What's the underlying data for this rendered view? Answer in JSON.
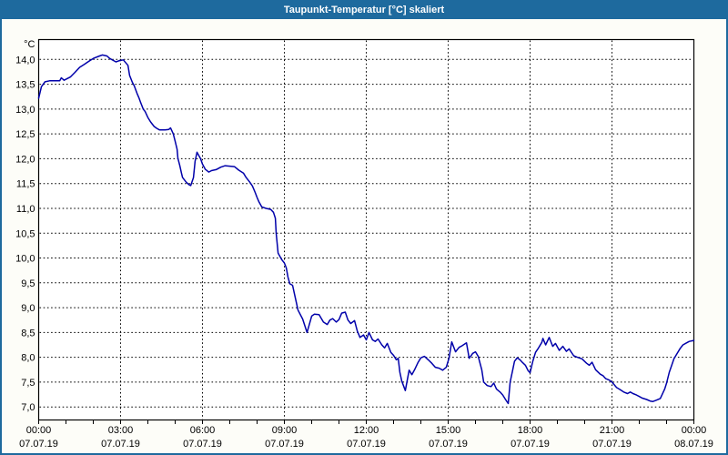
{
  "window": {
    "title": "Taupunkt-Temperatur [°C] skaliert"
  },
  "colors": {
    "titlebar_bg": "#1E6A9E",
    "window_border": "#1E6A9E",
    "plot_bg": "#FFFFFF",
    "grid": "#000000",
    "frame": "#000000",
    "series": "#0000AA"
  },
  "chart_data": {
    "type": "line",
    "title": "Taupunkt-Temperatur [°C] skaliert",
    "xlabel": "",
    "ylabel": "",
    "y_unit_label": "°C",
    "xlim_hours": [
      0,
      24
    ],
    "ylim": [
      7.0,
      14.0
    ],
    "y_tick_step": 0.5,
    "grid": "dotted",
    "legend_position": "none",
    "y_ticks": [
      {
        "value": 14.0,
        "label": "14,0"
      },
      {
        "value": 13.5,
        "label": "13,5"
      },
      {
        "value": 13.0,
        "label": "13,0"
      },
      {
        "value": 12.5,
        "label": "12,5"
      },
      {
        "value": 12.0,
        "label": "12,0"
      },
      {
        "value": 11.5,
        "label": "11,5"
      },
      {
        "value": 11.0,
        "label": "11,0"
      },
      {
        "value": 10.5,
        "label": "10,5"
      },
      {
        "value": 10.0,
        "label": "10,0"
      },
      {
        "value": 9.5,
        "label": "9,5"
      },
      {
        "value": 9.0,
        "label": "9,0"
      },
      {
        "value": 8.5,
        "label": "8,5"
      },
      {
        "value": 8.0,
        "label": "8,0"
      },
      {
        "value": 7.5,
        "label": "7,5"
      },
      {
        "value": 7.0,
        "label": "7,0"
      }
    ],
    "x_ticks": [
      {
        "hour": 0,
        "time": "00:00",
        "date": "07.07.19"
      },
      {
        "hour": 3,
        "time": "03:00",
        "date": "07.07.19"
      },
      {
        "hour": 6,
        "time": "06:00",
        "date": "07.07.19"
      },
      {
        "hour": 9,
        "time": "09:00",
        "date": "07.07.19"
      },
      {
        "hour": 12,
        "time": "12:00",
        "date": "07.07.19"
      },
      {
        "hour": 15,
        "time": "15:00",
        "date": "07.07.19"
      },
      {
        "hour": 18,
        "time": "18:00",
        "date": "07.07.19"
      },
      {
        "hour": 21,
        "time": "21:00",
        "date": "07.07.19"
      },
      {
        "hour": 24,
        "time": "00:00",
        "date": "08.07.19"
      }
    ],
    "x_minor_tick_hours": 1,
    "series": [
      {
        "name": "Taupunkt-Temperatur",
        "color": "#0000AA",
        "points": [
          [
            0,
            13.22
          ],
          [
            0.1,
            13.45
          ],
          [
            0.23,
            13.55
          ],
          [
            0.4,
            13.57
          ],
          [
            0.6,
            13.57
          ],
          [
            0.77,
            13.57
          ],
          [
            0.83,
            13.63
          ],
          [
            0.93,
            13.58
          ],
          [
            1.17,
            13.65
          ],
          [
            1.33,
            13.74
          ],
          [
            1.5,
            13.84
          ],
          [
            1.67,
            13.9
          ],
          [
            1.83,
            13.96
          ],
          [
            2,
            14.02
          ],
          [
            2.23,
            14.07
          ],
          [
            2.33,
            14.09
          ],
          [
            2.5,
            14.07
          ],
          [
            2.6,
            14.02
          ],
          [
            2.73,
            13.98
          ],
          [
            2.83,
            13.95
          ],
          [
            2.93,
            13.97
          ],
          [
            3,
            13.98
          ],
          [
            3.1,
            13.99
          ],
          [
            3.27,
            13.88
          ],
          [
            3.33,
            13.68
          ],
          [
            3.43,
            13.54
          ],
          [
            3.5,
            13.47
          ],
          [
            3.6,
            13.32
          ],
          [
            3.67,
            13.23
          ],
          [
            3.73,
            13.14
          ],
          [
            3.83,
            13.0
          ],
          [
            3.9,
            12.95
          ],
          [
            4,
            12.83
          ],
          [
            4.1,
            12.74
          ],
          [
            4.23,
            12.65
          ],
          [
            4.33,
            12.61
          ],
          [
            4.43,
            12.58
          ],
          [
            4.63,
            12.58
          ],
          [
            4.77,
            12.59
          ],
          [
            4.83,
            12.62
          ],
          [
            4.93,
            12.5
          ],
          [
            5,
            12.35
          ],
          [
            5.07,
            12.19
          ],
          [
            5.1,
            12.01
          ],
          [
            5.17,
            11.86
          ],
          [
            5.23,
            11.71
          ],
          [
            5.27,
            11.62
          ],
          [
            5.4,
            11.53
          ],
          [
            5.5,
            11.48
          ],
          [
            5.57,
            11.46
          ],
          [
            5.67,
            11.62
          ],
          [
            5.73,
            11.95
          ],
          [
            5.8,
            12.13
          ],
          [
            5.93,
            12.0
          ],
          [
            6,
            11.89
          ],
          [
            6.1,
            11.79
          ],
          [
            6.23,
            11.73
          ],
          [
            6.33,
            11.76
          ],
          [
            6.5,
            11.78
          ],
          [
            6.67,
            11.83
          ],
          [
            6.83,
            11.86
          ],
          [
            7,
            11.85
          ],
          [
            7.17,
            11.84
          ],
          [
            7.33,
            11.77
          ],
          [
            7.5,
            11.71
          ],
          [
            7.6,
            11.62
          ],
          [
            7.73,
            11.53
          ],
          [
            7.83,
            11.45
          ],
          [
            7.93,
            11.32
          ],
          [
            8,
            11.22
          ],
          [
            8.07,
            11.13
          ],
          [
            8.17,
            11.03
          ],
          [
            8.33,
            11.0
          ],
          [
            8.5,
            10.98
          ],
          [
            8.6,
            10.92
          ],
          [
            8.67,
            10.8
          ],
          [
            8.7,
            10.5
          ],
          [
            8.77,
            10.1
          ],
          [
            8.9,
            9.97
          ],
          [
            9,
            9.9
          ],
          [
            9.07,
            9.8
          ],
          [
            9.13,
            9.62
          ],
          [
            9.2,
            9.48
          ],
          [
            9.3,
            9.45
          ],
          [
            9.4,
            9.2
          ],
          [
            9.5,
            8.95
          ],
          [
            9.67,
            8.77
          ],
          [
            9.83,
            8.5
          ],
          [
            10,
            8.83
          ],
          [
            10.1,
            8.87
          ],
          [
            10.27,
            8.86
          ],
          [
            10.43,
            8.71
          ],
          [
            10.57,
            8.66
          ],
          [
            10.67,
            8.75
          ],
          [
            10.77,
            8.78
          ],
          [
            10.9,
            8.71
          ],
          [
            11,
            8.76
          ],
          [
            11.1,
            8.89
          ],
          [
            11.23,
            8.91
          ],
          [
            11.33,
            8.75
          ],
          [
            11.43,
            8.68
          ],
          [
            11.57,
            8.74
          ],
          [
            11.67,
            8.53
          ],
          [
            11.77,
            8.4
          ],
          [
            11.9,
            8.45
          ],
          [
            12,
            8.35
          ],
          [
            12.1,
            8.5
          ],
          [
            12.23,
            8.35
          ],
          [
            12.33,
            8.32
          ],
          [
            12.43,
            8.37
          ],
          [
            12.57,
            8.25
          ],
          [
            12.67,
            8.19
          ],
          [
            12.77,
            8.28
          ],
          [
            12.9,
            8.1
          ],
          [
            13,
            8.04
          ],
          [
            13.1,
            7.95
          ],
          [
            13.17,
            7.98
          ],
          [
            13.23,
            7.7
          ],
          [
            13.3,
            7.52
          ],
          [
            13.43,
            7.33
          ],
          [
            13.57,
            7.74
          ],
          [
            13.67,
            7.65
          ],
          [
            13.77,
            7.75
          ],
          [
            13.9,
            7.9
          ],
          [
            14,
            7.99
          ],
          [
            14.13,
            8.02
          ],
          [
            14.27,
            7.95
          ],
          [
            14.4,
            7.88
          ],
          [
            14.53,
            7.8
          ],
          [
            14.67,
            7.78
          ],
          [
            14.8,
            7.74
          ],
          [
            14.93,
            7.8
          ],
          [
            15.03,
            7.98
          ],
          [
            15.13,
            8.31
          ],
          [
            15.27,
            8.11
          ],
          [
            15.4,
            8.2
          ],
          [
            15.5,
            8.23
          ],
          [
            15.67,
            8.29
          ],
          [
            15.77,
            7.98
          ],
          [
            15.9,
            8.08
          ],
          [
            16,
            8.11
          ],
          [
            16.1,
            8.02
          ],
          [
            16.23,
            7.75
          ],
          [
            16.3,
            7.5
          ],
          [
            16.43,
            7.43
          ],
          [
            16.57,
            7.41
          ],
          [
            16.67,
            7.48
          ],
          [
            16.77,
            7.36
          ],
          [
            16.9,
            7.3
          ],
          [
            17,
            7.24
          ],
          [
            17.1,
            7.15
          ],
          [
            17.2,
            7.07
          ],
          [
            17.27,
            7.5
          ],
          [
            17.37,
            7.76
          ],
          [
            17.43,
            7.92
          ],
          [
            17.53,
            7.99
          ],
          [
            17.63,
            7.95
          ],
          [
            17.73,
            7.89
          ],
          [
            17.83,
            7.84
          ],
          [
            17.93,
            7.73
          ],
          [
            18,
            7.69
          ],
          [
            18.1,
            7.92
          ],
          [
            18.2,
            8.1
          ],
          [
            18.3,
            8.18
          ],
          [
            18.43,
            8.3
          ],
          [
            18.47,
            8.38
          ],
          [
            18.57,
            8.25
          ],
          [
            18.7,
            8.4
          ],
          [
            18.83,
            8.22
          ],
          [
            18.93,
            8.28
          ],
          [
            19.07,
            8.14
          ],
          [
            19.2,
            8.22
          ],
          [
            19.33,
            8.12
          ],
          [
            19.43,
            8.17
          ],
          [
            19.6,
            8.03
          ],
          [
            19.73,
            8.0
          ],
          [
            19.9,
            7.97
          ],
          [
            20.07,
            7.88
          ],
          [
            20.17,
            7.84
          ],
          [
            20.27,
            7.9
          ],
          [
            20.4,
            7.75
          ],
          [
            20.57,
            7.66
          ],
          [
            20.67,
            7.63
          ],
          [
            20.77,
            7.57
          ],
          [
            20.9,
            7.54
          ],
          [
            21,
            7.5
          ],
          [
            21.17,
            7.39
          ],
          [
            21.27,
            7.36
          ],
          [
            21.43,
            7.3
          ],
          [
            21.57,
            7.27
          ],
          [
            21.67,
            7.3
          ],
          [
            21.77,
            7.27
          ],
          [
            21.9,
            7.24
          ],
          [
            22,
            7.21
          ],
          [
            22.1,
            7.18
          ],
          [
            22.27,
            7.15
          ],
          [
            22.4,
            7.12
          ],
          [
            22.5,
            7.11
          ],
          [
            22.6,
            7.13
          ],
          [
            22.77,
            7.17
          ],
          [
            22.93,
            7.36
          ],
          [
            23,
            7.48
          ],
          [
            23.1,
            7.7
          ],
          [
            23.17,
            7.81
          ],
          [
            23.27,
            7.97
          ],
          [
            23.4,
            8.09
          ],
          [
            23.5,
            8.18
          ],
          [
            23.6,
            8.25
          ],
          [
            23.73,
            8.29
          ],
          [
            23.83,
            8.32
          ],
          [
            24,
            8.34
          ]
        ]
      }
    ]
  }
}
